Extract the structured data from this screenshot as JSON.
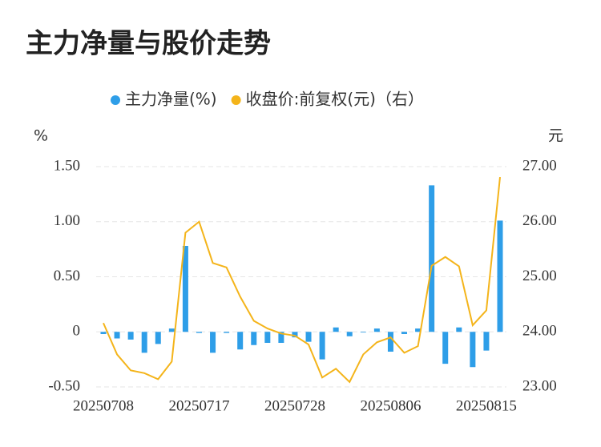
{
  "chart_data": {
    "type": "bar-line",
    "title": "主力净量与股价走势",
    "y_label": "%",
    "y2_label": "元",
    "categories": [
      "20250708",
      null,
      null,
      null,
      null,
      null,
      null,
      "20250717",
      null,
      null,
      null,
      null,
      null,
      null,
      "20250728",
      null,
      null,
      null,
      null,
      null,
      null,
      "20250806",
      null,
      null,
      null,
      null,
      null,
      null,
      "20250815",
      null
    ],
    "series": [
      {
        "name": "主力净量(%)",
        "type": "bar",
        "color": "#2e9ee8",
        "values": [
          -0.02,
          -0.06,
          -0.07,
          -0.19,
          -0.11,
          0.03,
          0.78,
          -0.01,
          -0.19,
          -0.01,
          -0.16,
          -0.12,
          -0.1,
          -0.1,
          -0.05,
          -0.09,
          -0.25,
          0.04,
          -0.04,
          0.0,
          0.03,
          -0.18,
          -0.02,
          0.03,
          1.33,
          -0.29,
          0.04,
          -0.32,
          -0.17,
          1.01
        ]
      },
      {
        "name": "收盘价:前复权(元)（右）",
        "type": "line",
        "axis": "y2",
        "color": "#f4b41a",
        "values": [
          24.16,
          23.59,
          23.3,
          23.25,
          23.14,
          23.46,
          25.8,
          26.0,
          25.25,
          25.17,
          24.64,
          24.2,
          24.06,
          23.97,
          23.93,
          23.77,
          23.17,
          23.33,
          23.09,
          23.59,
          23.81,
          23.9,
          23.62,
          23.74,
          25.2,
          25.36,
          25.19,
          24.12,
          24.39,
          26.81
        ]
      }
    ],
    "ylim": [
      -0.5,
      1.5
    ],
    "yticks": [
      {
        "value": 1.5,
        "label": "1.50"
      },
      {
        "value": 1.0,
        "label": "1.00"
      },
      {
        "value": 0.5,
        "label": "0.50"
      },
      0,
      {
        "value": -0.5,
        "label": "-0.50"
      }
    ],
    "y2lim": [
      23,
      27
    ],
    "y2ticks": [
      {
        "value": 27,
        "label": "27.00"
      },
      {
        "value": 26,
        "label": "26.00"
      },
      {
        "value": 25,
        "label": "25.00"
      },
      {
        "value": 24,
        "label": "24.00"
      },
      {
        "value": 23,
        "label": "23.00"
      }
    ],
    "grid": true
  }
}
